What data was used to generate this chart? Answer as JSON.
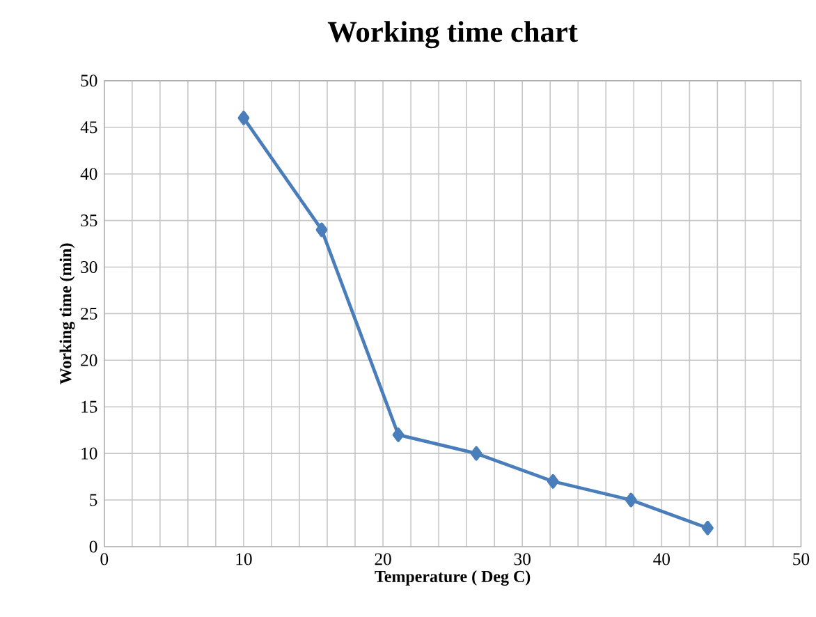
{
  "chart_data": {
    "type": "line",
    "title": "Working time chart",
    "xlabel": "Temperature ( Deg C)",
    "ylabel": "Working time (min)",
    "x": [
      10,
      15.6,
      21.1,
      26.7,
      32.2,
      37.8,
      43.3
    ],
    "series": [
      {
        "color": "#4a7ebb",
        "values": [
          46,
          34,
          12,
          10,
          7,
          5,
          2
        ]
      }
    ],
    "xlim": [
      0,
      50
    ],
    "xticks": [
      0,
      {
        "value": 2,
        "label": null
      },
      {
        "value": 4,
        "label": null
      },
      {
        "value": 6,
        "label": null
      },
      {
        "value": 8,
        "label": null
      },
      10,
      {
        "value": 12,
        "label": null
      },
      {
        "value": 14,
        "label": null
      },
      {
        "value": 16,
        "label": null
      },
      {
        "value": 18,
        "label": null
      },
      20,
      {
        "value": 22,
        "label": null
      },
      {
        "value": 24,
        "label": null
      },
      {
        "value": 26,
        "label": null
      },
      {
        "value": 28,
        "label": null
      },
      30,
      {
        "value": 32,
        "label": null
      },
      {
        "value": 34,
        "label": null
      },
      {
        "value": 36,
        "label": null
      },
      {
        "value": 38,
        "label": null
      },
      40,
      {
        "value": 42,
        "label": null
      },
      {
        "value": 44,
        "label": null
      },
      {
        "value": 46,
        "label": null
      },
      {
        "value": 48,
        "label": null
      },
      50
    ],
    "ylim": [
      0,
      50
    ],
    "yticks": [
      0,
      5,
      10,
      15,
      20,
      25,
      30,
      35,
      40,
      45,
      50
    ],
    "grid": true,
    "marker": "diamond",
    "line_style": "solid"
  }
}
